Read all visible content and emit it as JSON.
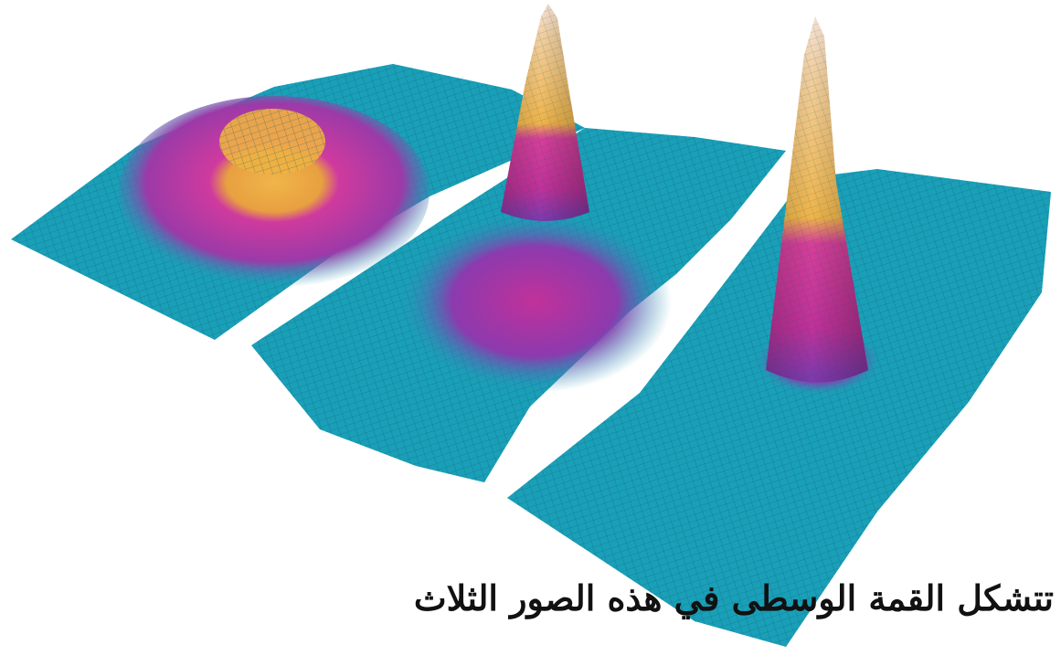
{
  "caption": "تتشكل القمة الوسطى في هذه الصور الثلاث",
  "colors": {
    "background": "#ffffff",
    "surface_cyan": "#1a9fb8",
    "grid_line": "#0c5a69",
    "mid_magenta": "#c1319a",
    "peak_yellow": "#f0b54a",
    "tip_pink": "#f7d9c8"
  },
  "panels": [
    {
      "label": "panel-1",
      "peak_shape": "broad dome"
    },
    {
      "label": "panel-2",
      "peak_shape": "sharp peak on broad base"
    },
    {
      "label": "panel-3",
      "peak_shape": "sharp isolated peak"
    }
  ]
}
